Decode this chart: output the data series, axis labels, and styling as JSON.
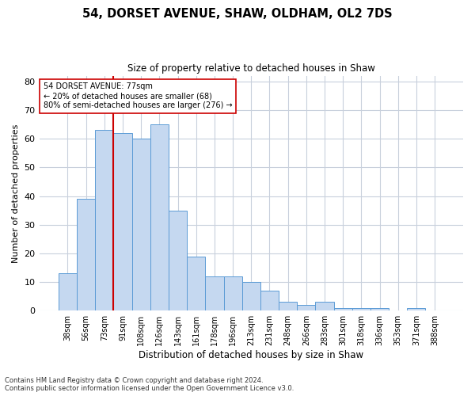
{
  "title": "54, DORSET AVENUE, SHAW, OLDHAM, OL2 7DS",
  "subtitle": "Size of property relative to detached houses in Shaw",
  "xlabel": "Distribution of detached houses by size in Shaw",
  "ylabel": "Number of detached properties",
  "categories": [
    "38sqm",
    "56sqm",
    "73sqm",
    "91sqm",
    "108sqm",
    "126sqm",
    "143sqm",
    "161sqm",
    "178sqm",
    "196sqm",
    "213sqm",
    "231sqm",
    "248sqm",
    "266sqm",
    "283sqm",
    "301sqm",
    "318sqm",
    "336sqm",
    "353sqm",
    "371sqm",
    "388sqm"
  ],
  "values": [
    13,
    39,
    63,
    62,
    60,
    65,
    35,
    19,
    12,
    12,
    10,
    7,
    3,
    2,
    3,
    1,
    1,
    1,
    0,
    1,
    0
  ],
  "bar_color": "#c5d8f0",
  "bar_edge_color": "#5b9bd5",
  "background_color": "#ffffff",
  "grid_color": "#c8d0dc",
  "vline_bar_index": 2,
  "vline_color": "#cc0000",
  "annotation_text": "54 DORSET AVENUE: 77sqm\n← 20% of detached houses are smaller (68)\n80% of semi-detached houses are larger (276) →",
  "annotation_box_color": "#ffffff",
  "annotation_box_edge_color": "#cc0000",
  "ylim": [
    0,
    82
  ],
  "yticks": [
    0,
    10,
    20,
    30,
    40,
    50,
    60,
    70,
    80
  ],
  "footnote1": "Contains HM Land Registry data © Crown copyright and database right 2024.",
  "footnote2": "Contains public sector information licensed under the Open Government Licence v3.0."
}
